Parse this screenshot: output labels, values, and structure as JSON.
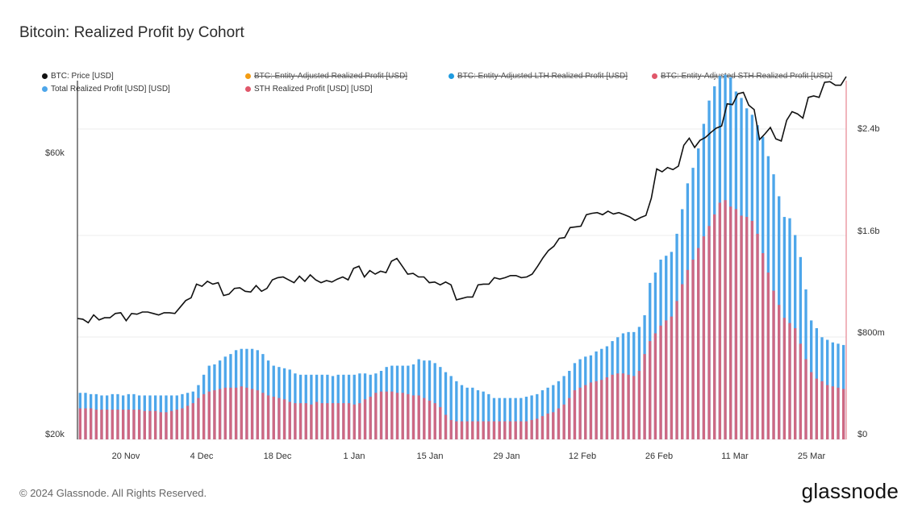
{
  "title": "Bitcoin: Realized Profit by Cohort",
  "footer": {
    "copyright": "© 2024 Glassnode. All Rights Reserved.",
    "brand": "glassnode"
  },
  "legend": [
    {
      "label": "BTC: Price [USD]",
      "color": "#111111",
      "disabled": false
    },
    {
      "label": "BTC: Entity-Adjusted Realized Profit [USD]",
      "color": "#f39c12",
      "disabled": true
    },
    {
      "label": "BTC: Entity-Adjusted LTH Realized Profit [USD]",
      "color": "#1e9be0",
      "disabled": true
    },
    {
      "label": "BTC: Entity-Adjusted STH Realized Profit [USD]",
      "color": "#e0576a",
      "disabled": true
    },
    {
      "label": "Total Realized Profit [USD] [USD]",
      "color": "#4da6ea",
      "disabled": false
    },
    {
      "label": "STH Realized Profit [USD] [USD]",
      "color": "#e0576a",
      "disabled": false
    }
  ],
  "left_axis": {
    "ticks": [
      "$60k",
      "$20k"
    ]
  },
  "right_axis": {
    "ticks": [
      "$2.4b",
      "$1.6b",
      "$800m",
      "$0"
    ]
  },
  "x_axis": {
    "ticks": [
      "20 Nov",
      "4 Dec",
      "18 Dec",
      "1 Jan",
      "15 Jan",
      "29 Jan",
      "12 Feb",
      "26 Feb",
      "11 Mar",
      "25 Mar"
    ]
  },
  "chart_data": {
    "type": "bar+line",
    "title": "Bitcoin: Realized Profit by Cohort",
    "x_range": [
      "2023-11-10",
      "2024-03-30"
    ],
    "price_ylim": [
      20000,
      70000
    ],
    "profit_ylim": [
      0,
      2800000000
    ],
    "series": [
      {
        "name": "BTC: Price [USD]",
        "axis": "left",
        "kind": "line",
        "values": [
          36900,
          36800,
          36300,
          37400,
          36700,
          37000,
          37000,
          37600,
          37700,
          36600,
          37600,
          37500,
          37800,
          37800,
          37600,
          37400,
          37700,
          37700,
          37600,
          38500,
          39400,
          39800,
          41700,
          41400,
          42100,
          41700,
          41900,
          40100,
          40300,
          41100,
          41200,
          40700,
          40600,
          41500,
          40700,
          41100,
          42300,
          42600,
          42700,
          42300,
          41900,
          42800,
          42100,
          43000,
          42300,
          41900,
          42200,
          42000,
          42400,
          42700,
          42300,
          43900,
          44200,
          42700,
          43600,
          43100,
          43500,
          43300,
          44900,
          45300,
          44200,
          43100,
          43200,
          42700,
          42700,
          41900,
          42000,
          41600,
          42000,
          41600,
          39500,
          39700,
          39900,
          39900,
          41600,
          41700,
          41700,
          42600,
          42400,
          42600,
          42900,
          42900,
          42600,
          42700,
          43100,
          44200,
          45400,
          46400,
          47000,
          48100,
          48200,
          49600,
          49700,
          49800,
          51400,
          51600,
          51700,
          51400,
          51900,
          51500,
          51700,
          51400,
          51100,
          50600,
          51000,
          51300,
          53700,
          57800,
          57400,
          58000,
          57700,
          58200,
          61100,
          62100,
          60800,
          61800,
          62200,
          62900,
          63500,
          63800,
          66900,
          66800,
          68300,
          68500,
          66700,
          66100,
          61900,
          62700,
          63600,
          62000,
          61700,
          64600,
          65800,
          65500,
          64900,
          67800,
          68000,
          67800,
          69900,
          70000,
          69500,
          69500,
          70700
        ]
      },
      {
        "name": "Total Realized Profit [USD] [USD]",
        "axis": "right",
        "kind": "bar",
        "values": [
          360,
          360,
          350,
          350,
          340,
          340,
          350,
          350,
          340,
          350,
          350,
          340,
          340,
          340,
          340,
          340,
          340,
          340,
          340,
          350,
          360,
          370,
          420,
          500,
          570,
          580,
          610,
          640,
          660,
          690,
          700,
          700,
          700,
          690,
          660,
          610,
          570,
          560,
          550,
          540,
          510,
          500,
          500,
          500,
          500,
          500,
          500,
          490,
          500,
          500,
          500,
          500,
          510,
          510,
          500,
          510,
          530,
          560,
          570,
          570,
          570,
          570,
          580,
          620,
          610,
          610,
          590,
          560,
          520,
          490,
          450,
          420,
          400,
          400,
          380,
          370,
          350,
          320,
          320,
          320,
          320,
          320,
          320,
          330,
          340,
          350,
          380,
          400,
          420,
          450,
          490,
          530,
          590,
          620,
          640,
          650,
          680,
          700,
          720,
          760,
          790,
          820,
          830,
          830,
          870,
          960,
          1210,
          1290,
          1390,
          1420,
          1450,
          1590,
          1780,
          1980,
          2100,
          2250,
          2440,
          2620,
          2730,
          2810,
          2820,
          2800,
          2690,
          2640,
          2560,
          2510,
          2430,
          2340,
          2190,
          2050,
          1880,
          1720,
          1710,
          1580,
          1410,
          1160,
          920,
          860,
          790,
          770,
          750,
          740,
          730
        ]
      },
      {
        "name": "STH Realized Profit [USD] [USD]",
        "axis": "right",
        "kind": "bar",
        "values": [
          240,
          240,
          240,
          230,
          230,
          230,
          230,
          230,
          230,
          230,
          230,
          230,
          220,
          220,
          220,
          210,
          210,
          220,
          230,
          240,
          260,
          280,
          320,
          350,
          370,
          380,
          390,
          400,
          400,
          400,
          410,
          400,
          390,
          380,
          360,
          340,
          330,
          320,
          310,
          290,
          280,
          280,
          280,
          270,
          290,
          280,
          280,
          280,
          280,
          280,
          280,
          270,
          280,
          310,
          330,
          360,
          370,
          370,
          370,
          360,
          360,
          350,
          340,
          340,
          320,
          300,
          280,
          250,
          190,
          150,
          140,
          140,
          140,
          140,
          140,
          140,
          140,
          140,
          140,
          140,
          140,
          140,
          140,
          140,
          150,
          160,
          180,
          200,
          210,
          240,
          270,
          320,
          380,
          400,
          420,
          440,
          450,
          460,
          480,
          500,
          510,
          510,
          500,
          490,
          530,
          660,
          760,
          820,
          880,
          920,
          950,
          1070,
          1200,
          1310,
          1390,
          1480,
          1570,
          1650,
          1740,
          1830,
          1850,
          1800,
          1780,
          1730,
          1720,
          1690,
          1590,
          1440,
          1290,
          1150,
          1040,
          940,
          900,
          860,
          740,
          620,
          520,
          470,
          450,
          420,
          410,
          400,
          390
        ]
      }
    ]
  }
}
